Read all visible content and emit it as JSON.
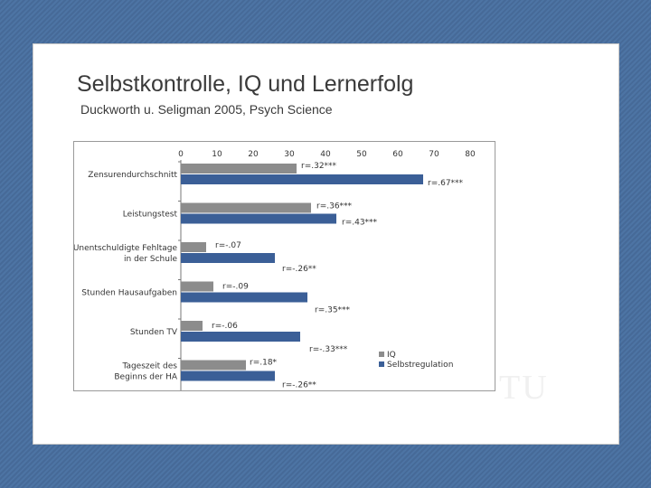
{
  "slide": {
    "title": "Selbstkontrolle, IQ und Lernerfolg",
    "subtitle": "Duckworth u. Seligman 2005, Psych Science"
  },
  "chart_data": {
    "type": "bar",
    "orientation": "horizontal",
    "x_ticks": [
      0,
      10,
      20,
      30,
      40,
      50,
      60,
      70,
      80
    ],
    "xlim": [
      0,
      80
    ],
    "categories": [
      "Zensurendurchschnitt",
      "Leistungstest",
      "Unentschuldigte Fehltage\nin der Schule",
      "Stunden Hausaufgaben",
      "Stunden TV",
      "Tageszeit des\nBeginns der HA"
    ],
    "series": [
      {
        "name": "IQ",
        "color": "#8c8c8c",
        "values": [
          32,
          36,
          7,
          9,
          6,
          18
        ],
        "labels": [
          "r=.32***",
          "r=.36***",
          "r=-.07",
          "r=-.09",
          "r=-.06",
          "r=.18*"
        ]
      },
      {
        "name": "Selbstregulation",
        "color": "#3b5f97",
        "values": [
          67,
          43,
          26,
          35,
          33,
          26
        ],
        "labels": [
          "r=.67***",
          "r=.43***",
          "r=-.26**",
          "r=.35***",
          "r=-.33***",
          "r=-.26**"
        ]
      }
    ],
    "legend": [
      "IQ",
      "Selbstregulation"
    ],
    "legend_position": "bottom-right"
  }
}
